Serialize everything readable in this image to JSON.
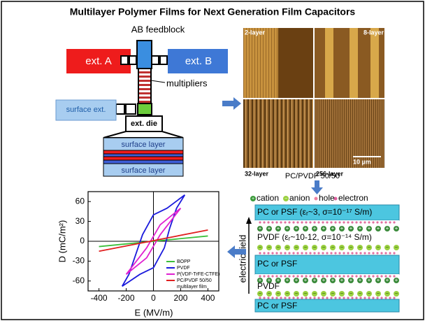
{
  "title": "Multilayer Polymer Films for Next Generation Film Capacitors",
  "extrusion": {
    "feedblock": "AB feedblock",
    "ext_a": "ext. A",
    "ext_b": "ext. B",
    "multipliers": "multipliers",
    "surface_ext": "surface ext.",
    "die": "ext. die",
    "film_layers": [
      "surface layer",
      "surface layer"
    ]
  },
  "afm": {
    "panels": [
      "2-layer",
      "8-layer",
      "32-layer",
      "256-layer"
    ],
    "scale_bar": "10 µm",
    "caption": "PC/PVDF 50/50"
  },
  "carriers": [
    "cation",
    "anion",
    "hole",
    "electron"
  ],
  "stack": {
    "layers": [
      "PC or PSF (εᵣ~3, σ=10⁻¹⁷ S/m)",
      "PVDF (εᵣ~10-12, σ=10⁻¹⁴ S/m)",
      "PC or PSF",
      "PVDF",
      "PC or PSF"
    ],
    "field_label": "electric field"
  },
  "chart_data": {
    "type": "line",
    "xlabel": "E (MV/m)",
    "ylabel": "D (mC/m²)",
    "xlim": [
      -480,
      480
    ],
    "ylim": [
      -75,
      75
    ],
    "xticks": [
      -400,
      -200,
      0,
      200,
      400
    ],
    "yticks": [
      -60,
      -30,
      0,
      30,
      60
    ],
    "series": [
      {
        "name": "BOPP",
        "color": "#3cc03c",
        "x": [
          -400,
          400
        ],
        "values": [
          -8,
          8
        ]
      },
      {
        "name": "PVDF",
        "color": "#1a1adc",
        "x": [
          -230,
          -100,
          0,
          80,
          120,
          170,
          230,
          100,
          0,
          -80,
          -130,
          -180,
          -230
        ],
        "values": [
          -68,
          -50,
          -40,
          -10,
          20,
          50,
          70,
          50,
          40,
          10,
          -20,
          -50,
          -68
        ]
      },
      {
        "name": "P(VDF-TrFE-CTFE)",
        "color": "#e020d0",
        "x": [
          -200,
          -50,
          50,
          200,
          50,
          -50,
          -200
        ],
        "values": [
          -50,
          -25,
          10,
          50,
          25,
          -10,
          -50
        ]
      },
      {
        "name": "PC/PVDF 50/50 multilayer film",
        "color": "#e02020",
        "x": [
          -400,
          400
        ],
        "values": [
          -15,
          17
        ]
      }
    ]
  }
}
